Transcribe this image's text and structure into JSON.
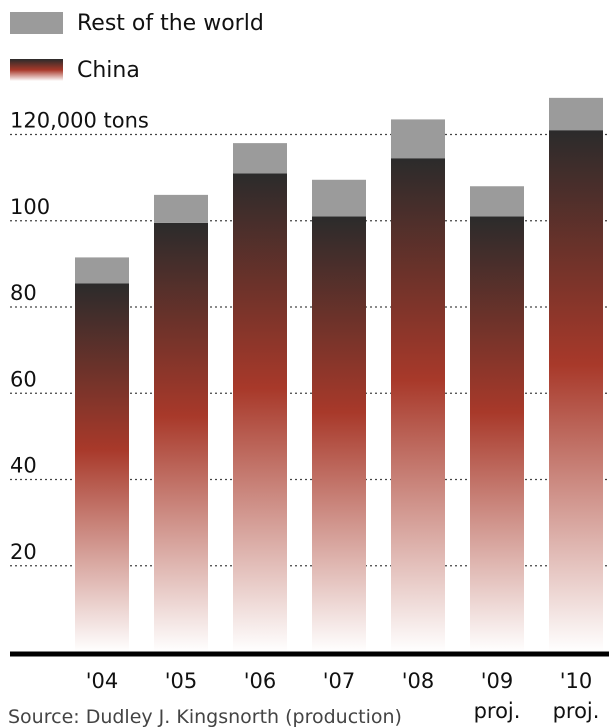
{
  "legend": {
    "rest_label": "Rest of the world",
    "china_label": "China"
  },
  "source": "Source: Dudley J. Kingsnorth (production)",
  "colors": {
    "rest": "#9b9b9b",
    "china_top": "#2b2b2b",
    "china_mid": "#a8392a",
    "china_bottom": "#ffffff",
    "grid": "#444444",
    "axis": "#000000"
  },
  "chart_data": {
    "type": "bar",
    "stacked": true,
    "categories": [
      "'04",
      "'05",
      "'06",
      "'07",
      "'08",
      "'09",
      "'10"
    ],
    "category_notes": [
      "",
      "",
      "",
      "",
      "",
      "proj.",
      "proj."
    ],
    "series": [
      {
        "name": "China",
        "values": [
          85.5,
          99.5,
          111.0,
          101.0,
          114.5,
          101.0,
          121.0
        ]
      },
      {
        "name": "Rest of the world",
        "values": [
          6.0,
          6.5,
          7.0,
          8.5,
          9.0,
          7.0,
          7.5
        ]
      }
    ],
    "ylim": [
      0,
      128
    ],
    "yticks": [
      20,
      40,
      60,
      80,
      100,
      120
    ],
    "ytick_labels": [
      "20",
      "40",
      "60",
      "80",
      "100",
      "120,000 tons"
    ],
    "grid": true,
    "legend_position": "top-left"
  }
}
